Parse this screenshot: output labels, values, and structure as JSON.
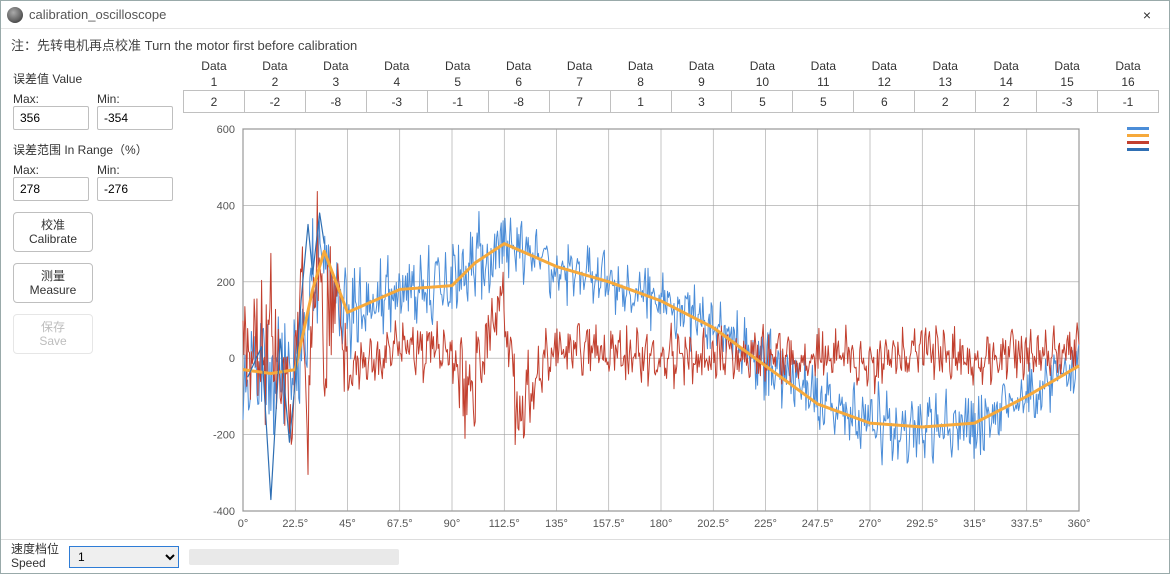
{
  "window": {
    "title": "calibration_oscilloscope",
    "close_glyph": "×"
  },
  "note": "注：先转电机再点校准  Turn the motor first before calibration",
  "left": {
    "error_value_label": "误差值  Value",
    "error_range_label": "误差范围  In Range（%）",
    "max_label": "Max:",
    "min_label": "Min:",
    "error_value_max": "356",
    "error_value_min": "-354",
    "error_range_max": "278",
    "error_range_min": "-276",
    "btn_calibrate_cn": "校准",
    "btn_calibrate_en": "Calibrate",
    "btn_measure_cn": "测量",
    "btn_measure_en": "Measure",
    "btn_save_cn": "保存",
    "btn_save_en": "Save"
  },
  "data_headers": [
    "Data 1",
    "Data 2",
    "Data 3",
    "Data 4",
    "Data 5",
    "Data 6",
    "Data 7",
    "Data 8",
    "Data 9",
    "Data 10",
    "Data 11",
    "Data 12",
    "Data 13",
    "Data 14",
    "Data 15",
    "Data 16"
  ],
  "data_values": [
    2,
    -2,
    -8,
    -3,
    -1,
    -8,
    7,
    1,
    3,
    5,
    5,
    6,
    2,
    2,
    -3,
    -1
  ],
  "bottom": {
    "speed_label_cn": "速度档位",
    "speed_label_en": "Speed",
    "speed_selected": "1"
  },
  "chart": {
    "type": "line",
    "background_color": "#ffffff",
    "plot_bg_color": "#ffffff",
    "grid_color": "#a0a0a0",
    "axis_color": "#606060",
    "tick_fontsize": 11,
    "tick_color": "#555555",
    "x": {
      "min": 0,
      "max": 360,
      "tick_step": 22.5,
      "labels": [
        "0°",
        "22.5°",
        "45°",
        "67.5°",
        "90°",
        "112.5°",
        "135°",
        "157.5°",
        "180°",
        "202.5°",
        "225°",
        "247.5°",
        "270°",
        "292.5°",
        "315°",
        "337.5°",
        "360°"
      ]
    },
    "y": {
      "min": -400,
      "max": 600,
      "tick_step": 200,
      "labels": [
        "-400",
        "-200",
        "0",
        "200",
        "400",
        "600"
      ]
    },
    "legend_colors": [
      "#4b8dd8",
      "#f6a93b",
      "#c23f2e",
      "#2f6fb3"
    ],
    "series": [
      {
        "name": "error_blue",
        "color": "#4b8dd8",
        "line_width": 1.0,
        "generator": "noisy",
        "baseline": "yellow",
        "noise_amplitude": 70,
        "noise_frequency": 120
      },
      {
        "name": "error_red",
        "color": "#c23f2e",
        "line_width": 1.0,
        "generator": "noisy",
        "baseline": "red_base",
        "noise_amplitude": 65,
        "noise_frequency": 150
      },
      {
        "name": "smoothed_yellow",
        "color": "#f6a93b",
        "line_width": 3.0,
        "generator": "points",
        "points_x": [
          0,
          12,
          22.5,
          30,
          35,
          45,
          67.5,
          90,
          100,
          112.5,
          135,
          157.5,
          180,
          202.5,
          225,
          247.5,
          270,
          292.5,
          315,
          337.5,
          360
        ],
        "points_y": [
          -30,
          -40,
          -30,
          180,
          280,
          120,
          180,
          190,
          250,
          300,
          240,
          200,
          150,
          80,
          -20,
          -120,
          -170,
          -180,
          -170,
          -100,
          -20
        ]
      },
      {
        "name": "blue_early_spike",
        "color": "#2f6fb3",
        "line_width": 1.2,
        "generator": "points",
        "points_x": [
          2,
          8,
          12,
          16,
          20,
          22.5,
          25,
          28,
          30,
          33,
          35
        ],
        "points_y": [
          -50,
          30,
          -370,
          50,
          -220,
          -60,
          150,
          350,
          220,
          380,
          300
        ]
      }
    ],
    "red_base": {
      "points_x": [
        0,
        12,
        20,
        22.5,
        25,
        28,
        32,
        35,
        40,
        45,
        67.5,
        90,
        95,
        112.5,
        118,
        135,
        157.5,
        180,
        202.5,
        225,
        247.5,
        270,
        292.5,
        315,
        337.5,
        360
      ],
      "points_y": [
        10,
        60,
        -150,
        -100,
        200,
        -200,
        350,
        -60,
        260,
        -40,
        20,
        10,
        -120,
        160,
        -120,
        30,
        20,
        0,
        10,
        0,
        10,
        -10,
        20,
        0,
        10,
        20
      ]
    },
    "yellow_base": {
      "points_x": [
        0,
        12,
        22.5,
        30,
        35,
        45,
        67.5,
        90,
        100,
        112.5,
        135,
        157.5,
        180,
        202.5,
        225,
        247.5,
        270,
        292.5,
        315,
        337.5,
        360
      ],
      "points_y": [
        -30,
        -40,
        -30,
        180,
        280,
        120,
        180,
        190,
        250,
        300,
        240,
        200,
        150,
        80,
        -20,
        -120,
        -170,
        -180,
        -170,
        -100,
        -20
      ]
    }
  }
}
